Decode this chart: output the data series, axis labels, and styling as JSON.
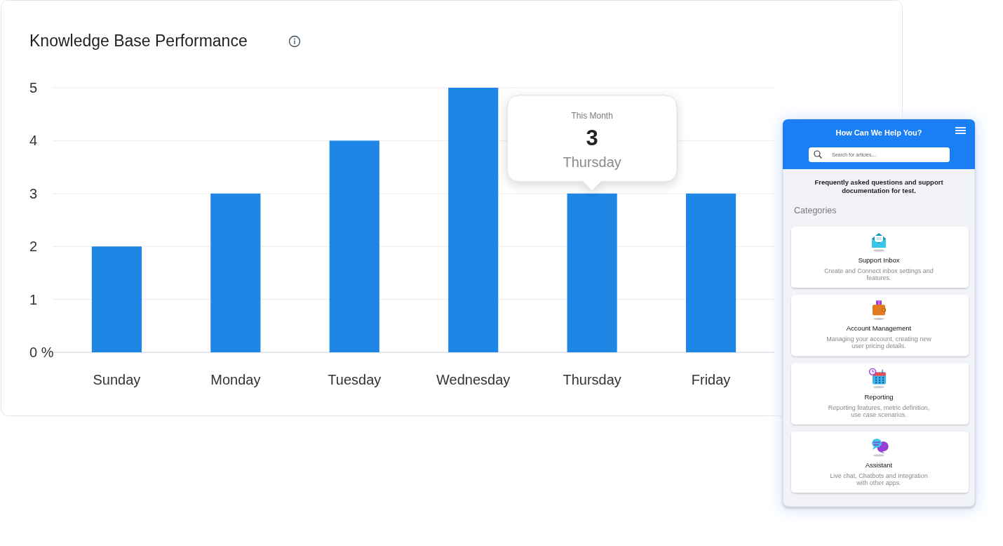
{
  "chart_data": [
    {
      "type": "bar",
      "title": "Knowledge Base Performance",
      "categories": [
        "Sunday",
        "Monday",
        "Tuesday",
        "Wednesday",
        "Thursday",
        "Friday"
      ],
      "values": [
        2,
        3,
        4,
        5,
        3,
        3
      ],
      "color": "#1e86e5",
      "ylim": [
        0,
        5
      ],
      "yticks": [
        {
          "value": 0,
          "label": "0 %"
        },
        1,
        2,
        3,
        4,
        5
      ],
      "grid": "y",
      "value_labels": [
        null,
        null,
        null,
        null,
        "3",
        null
      ],
      "annotations": [
        "This Month"
      ]
    },
    {
      "type": "other",
      "title": "How Can We Help You?",
      "subtitle": "Frequently asked questions and support documentation for test.",
      "annotations": [
        "Search for articles....",
        "Categories",
        "Support Inbox",
        "Create and Connect inbox settings and features.",
        "Account Management",
        "Managing your account, creating new user pricing details.",
        "Reporting",
        "Reporting features, metric definition, use case scenarios.",
        "Assistant",
        "Live chat, Chatbots and Integration with other apps."
      ]
    }
  ]
}
